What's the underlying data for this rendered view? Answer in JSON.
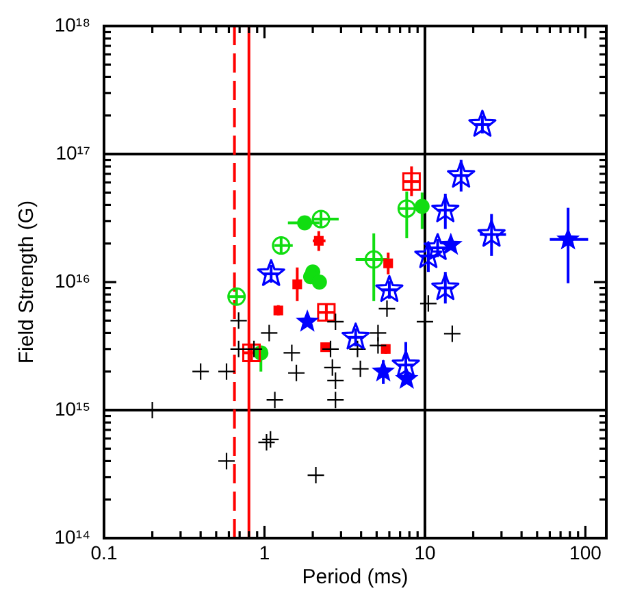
{
  "chart_data": {
    "type": "scatter",
    "xlabel": "Period (ms)",
    "ylabel": "Field Strength (G)",
    "log": "xy",
    "grid": false,
    "legend": false,
    "xlim": [
      0.1,
      135
    ],
    "ylim": [
      100000000000000.0,
      1e+18
    ],
    "xticks": [
      0.1,
      {
        "value": 0.2,
        "label": null
      },
      {
        "value": 0.3,
        "label": null
      },
      {
        "value": 0.4,
        "label": null
      },
      {
        "value": 0.5,
        "label": null
      },
      {
        "value": 0.6,
        "label": null
      },
      {
        "value": 0.7,
        "label": null
      },
      {
        "value": 0.8,
        "label": null
      },
      {
        "value": 0.9,
        "label": null
      },
      1,
      {
        "value": 2,
        "label": null
      },
      {
        "value": 3,
        "label": null
      },
      {
        "value": 4,
        "label": null
      },
      {
        "value": 5,
        "label": null
      },
      {
        "value": 6,
        "label": null
      },
      {
        "value": 7,
        "label": null
      },
      {
        "value": 8,
        "label": null
      },
      {
        "value": 9,
        "label": null
      },
      10,
      {
        "value": 20,
        "label": null
      },
      {
        "value": 30,
        "label": null
      },
      {
        "value": 40,
        "label": null
      },
      {
        "value": 50,
        "label": null
      },
      {
        "value": 60,
        "label": null
      },
      {
        "value": 70,
        "label": null
      },
      {
        "value": 80,
        "label": null
      },
      {
        "value": 90,
        "label": null
      },
      100
    ],
    "yticks": [
      {
        "value": 100000000000000.0,
        "label": "10¹⁴"
      },
      {
        "value": 200000000000000.0,
        "label": null
      },
      {
        "value": 300000000000000.0,
        "label": null
      },
      {
        "value": 400000000000000.0,
        "label": null
      },
      {
        "value": 500000000000000.0,
        "label": null
      },
      {
        "value": 600000000000000.0,
        "label": null
      },
      {
        "value": 700000000000000.0,
        "label": null
      },
      {
        "value": 800000000000000.0,
        "label": null
      },
      {
        "value": 900000000000000.0,
        "label": null
      },
      {
        "value": 1000000000000000.0,
        "label": "10¹⁵"
      },
      {
        "value": 2000000000000000.0,
        "label": null
      },
      {
        "value": 3000000000000000.0,
        "label": null
      },
      {
        "value": 4000000000000000.0,
        "label": null
      },
      {
        "value": 5000000000000000.0,
        "label": null
      },
      {
        "value": 6000000000000000.0,
        "label": null
      },
      {
        "value": 7000000000000000.0,
        "label": null
      },
      {
        "value": 8000000000000000.0,
        "label": null
      },
      {
        "value": 9000000000000000.0,
        "label": null
      },
      {
        "value": 1e+16,
        "label": "10¹⁶"
      },
      {
        "value": 2e+16,
        "label": null
      },
      {
        "value": 3e+16,
        "label": null
      },
      {
        "value": 4e+16,
        "label": null
      },
      {
        "value": 5e+16,
        "label": null
      },
      {
        "value": 6e+16,
        "label": null
      },
      {
        "value": 7e+16,
        "label": null
      },
      {
        "value": 8e+16,
        "label": null
      },
      {
        "value": 9e+16,
        "label": null
      },
      {
        "value": 1e+17,
        "label": "10¹⁷"
      },
      {
        "value": 2e+17,
        "label": null
      },
      {
        "value": 3e+17,
        "label": null
      },
      {
        "value": 4e+17,
        "label": null
      },
      {
        "value": 5e+17,
        "label": null
      },
      {
        "value": 6e+17,
        "label": null
      },
      {
        "value": 7e+17,
        "label": null
      },
      {
        "value": 8e+17,
        "label": null
      },
      {
        "value": 9e+17,
        "label": null
      },
      {
        "value": 1e+18,
        "label": "10¹⁸"
      }
    ],
    "ref_lines": [
      {
        "axis": "x",
        "value": 10,
        "color": "#000000",
        "line_style": "solid"
      },
      {
        "axis": "y",
        "value": 1000000000000000.0,
        "color": "#000000",
        "line_style": "solid"
      },
      {
        "axis": "y",
        "value": 1e+17,
        "color": "#000000",
        "line_style": "solid"
      },
      {
        "axis": "x",
        "value": 0.65,
        "color": "#ff0000",
        "line_style": "dashed"
      },
      {
        "axis": "x",
        "value": 0.8,
        "color": "#ff0000",
        "line_style": "solid"
      }
    ],
    "series": [
      {
        "type": "scatter",
        "marker": "cross",
        "color": "#000000",
        "x": [
          0.2,
          0.4,
          0.58,
          0.69,
          0.69,
          0.58,
          0.86,
          1.07,
          1.03,
          1.09,
          1.16,
          1.48,
          1.58,
          2.65,
          2.77,
          2.77,
          2.58,
          3.96,
          3.8,
          5.1,
          5.1,
          5.8,
          2.77,
          10.5,
          10,
          14.8,
          2.09
        ],
        "values": [
          1000000000000000.0,
          2000000000000000.0,
          2000000000000000.0,
          5000000000000000.0,
          3000000000000000.0,
          400000000000000.0,
          3000000000000000.0,
          4000000000000000.0,
          560000000000000.0,
          590000000000000.0,
          1200000000000000.0,
          2800000000000000.0,
          1950000000000000.0,
          2150000000000000.0,
          1700000000000000.0,
          1200000000000000.0,
          3000000000000000.0,
          2100000000000000.0,
          3000000000000000.0,
          4000000000000000.0,
          3200000000000000.0,
          6200000000000000.0,
          4900000000000000.0,
          6800000000000000.0,
          4900000000000000.0,
          3950000000000000.0,
          310000000000000.0
        ]
      },
      {
        "type": "scatter",
        "marker": "square",
        "color": "#ff0000",
        "x": [
          2.18,
          1.6,
          1.22,
          2.39,
          5.7,
          5.9
        ],
        "values": [
          2.1e+16,
          9600000000000000.0,
          6000000000000000.0,
          3100000000000000.0,
          3000000000000000.0,
          1.4e+16
        ],
        "errors": [
          [
            1.75e+16,
            2.5e+16
          ],
          [
            7100000000000000.0,
            1.3e+16
          ],
          [
            5500000000000000.0,
            6600000000000000.0
          ],
          null,
          [
            2750000000000000.0,
            3250000000000000.0
          ],
          [
            1.15e+16,
            1.7e+16
          ]
        ],
        "xerrors": [
          [
            2.0,
            2.4
          ],
          null,
          null,
          null,
          [
            5.4,
            6.0
          ],
          null
        ]
      },
      {
        "type": "scatter",
        "marker": "square",
        "color": "#ff0000",
        "x": [
          0.83,
          2.43,
          8.25
        ],
        "values": [
          2800000000000000.0,
          5800000000000000.0,
          6.1e+16
        ],
        "errors": [
          [
            2400000000000000.0,
            3250000000000000.0
          ],
          [
            5000000000000000.0,
            6700000000000000.0
          ],
          [
            4.7e+16,
            8e+16
          ]
        ],
        "xerrors": [
          [
            0.74,
            0.93
          ],
          [
            2.16,
            2.73
          ],
          [
            7.35,
            9.25
          ]
        ]
      },
      {
        "type": "scatter",
        "marker": "circle",
        "color": "#11dd11",
        "x": [
          1.78,
          2.0,
          1.94,
          2.2,
          9.6,
          0.95
        ],
        "values": [
          2.9e+16,
          1.2e+16,
          1.1e+16,
          1e+16,
          3.9e+16,
          2800000000000000.0
        ],
        "errors": [
          null,
          null,
          null,
          null,
          [
            2.6e+16,
            5e+16
          ],
          [
            2000000000000000.0,
            2900000000000000.0
          ]
        ],
        "xerrors": [
          [
            1.4,
            2.2
          ],
          null,
          null,
          null,
          null,
          null
        ]
      },
      {
        "type": "scatter",
        "marker": "circle",
        "color": "#11dd11",
        "x": [
          0.67,
          1.27,
          2.25,
          4.8,
          7.7
        ],
        "values": [
          7700000000000000.0,
          1.93e+16,
          3.1e+16,
          1.5e+16,
          3.75e+16
        ],
        "errors": [
          [
            6600000000000000.0,
            8900000000000000.0
          ],
          [
            1.66e+16,
            2.24e+16
          ],
          [
            2.67e+16,
            3.6e+16
          ],
          [
            7100000000000000.0,
            2.4e+16
          ],
          [
            2.2e+16,
            5.1e+16
          ]
        ],
        "xerrors": [
          [
            0.6,
            0.75
          ],
          [
            1.15,
            1.5
          ],
          [
            2.0,
            2.9
          ],
          [
            3.7,
            6.0
          ],
          [
            6.9,
            8.6
          ]
        ]
      },
      {
        "type": "scatter",
        "marker": "star",
        "color": "#0000ff",
        "x": [
          1.1,
          6.0,
          3.7,
          7.6,
          22.8,
          16.8,
          13.4,
          26,
          12,
          10.5,
          13.4
        ],
        "values": [
          1.16e+16,
          8700000000000000.0,
          3700000000000000.0,
          2250000000000000.0,
          1.7e+17,
          6.8e+16,
          3.65e+16,
          2.35e+16,
          1.85e+16,
          1.6e+16,
          9000000000000000.0
        ],
        "errors": [
          [
            9900000000000000.0,
            1.36e+16
          ],
          [
            7400000000000000.0,
            1.02e+16
          ],
          [
            3150000000000000.0,
            4350000000000000.0
          ],
          [
            1600000000000000.0,
            3400000000000000.0
          ],
          [
            1.45e+17,
            2e+17
          ],
          [
            5.1e+16,
            9e+16
          ],
          [
            2.6e+16,
            4.9e+16
          ],
          [
            1.6e+16,
            3.4e+16
          ],
          [
            1.57e+16,
            2.17e+16
          ],
          [
            1.2e+16,
            2.05e+16
          ],
          [
            6800000000000000.0,
            1.2e+16
          ]
        ],
        "xerrors": [
          [
            0.98,
            1.23
          ],
          [
            5.35,
            6.7
          ],
          [
            3.3,
            4.15
          ],
          [
            6.8,
            8.5
          ],
          [
            20.3,
            25.6
          ],
          [
            15.0,
            18.8
          ],
          [
            11.9,
            15.0
          ],
          [
            22,
            32
          ],
          [
            10.7,
            13.5
          ],
          [
            9.4,
            11.8
          ],
          [
            11.9,
            15.0
          ]
        ]
      },
      {
        "type": "scatter",
        "marker": "star",
        "color": "#0000ff",
        "x": [
          1.85,
          5.5,
          7.7,
          14.5,
          78
        ],
        "values": [
          4900000000000000.0,
          2000000000000000.0,
          1750000000000000.0,
          1.95e+16,
          2.15e+16
        ],
        "errors": [
          null,
          [
            1600000000000000.0,
            2450000000000000.0
          ],
          null,
          null,
          [
            9800000000000000.0,
            3.8e+16
          ]
        ],
        "xerrors": [
          null,
          null,
          null,
          null,
          [
            60,
            104
          ]
        ]
      }
    ]
  }
}
